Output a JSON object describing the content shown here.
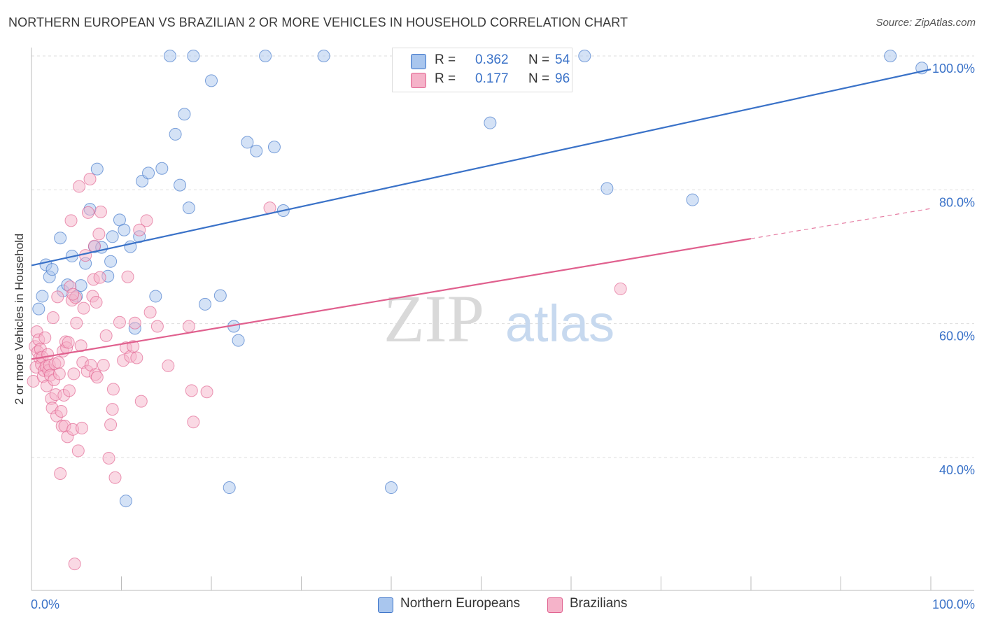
{
  "title": "NORTHERN EUROPEAN VS BRAZILIAN 2 OR MORE VEHICLES IN HOUSEHOLD CORRELATION CHART",
  "source": "Source: ZipAtlas.com",
  "colors": {
    "blue": "#3a72c8",
    "blue_fill": "#a9c6ee",
    "pink": "#e0608e",
    "pink_fill": "#f5b3c9",
    "grid": "#dddddd"
  },
  "legend": {
    "series": [
      {
        "r_label": "R =",
        "r_value": "0.362",
        "n_label": "N =",
        "n_value": "54"
      },
      {
        "r_label": "R =",
        "r_value": "0.177",
        "n_label": "N =",
        "n_value": "96"
      }
    ]
  },
  "bottom_legend": [
    "Northern Europeans",
    "Brazilians"
  ],
  "chart_data": {
    "type": "scatter",
    "title": "NORTHERN EUROPEAN VS BRAZILIAN 2 OR MORE VEHICLES IN HOUSEHOLD CORRELATION CHART",
    "xlabel": "",
    "ylabel": "2 or more Vehicles in Household",
    "xlim": [
      0,
      100
    ],
    "ylim": [
      22,
      102
    ],
    "x_tick_labels": [
      {
        "value": 0,
        "label": "0.0%"
      },
      {
        "value": 100,
        "label": "100.0%"
      }
    ],
    "y_tick_labels": [
      {
        "value": 40,
        "label": "40.0%"
      },
      {
        "value": 60,
        "label": "60.0%"
      },
      {
        "value": 80,
        "label": "80.0%"
      },
      {
        "value": 100,
        "label": "100.0%"
      }
    ],
    "watermark": {
      "zip": "ZIP",
      "atlas": "atlas"
    },
    "series": [
      {
        "name": "Northern Europeans",
        "color": "#3a72c8",
        "R": 0.362,
        "N": 54,
        "trend": {
          "x0": 0,
          "y0": 68.7,
          "x1": 100,
          "y1": 98.0,
          "solid_until": 100
        },
        "points": [
          [
            0.8,
            62.2
          ],
          [
            1.2,
            64.1
          ],
          [
            1.6,
            68.8
          ],
          [
            2.0,
            67.0
          ],
          [
            2.3,
            68.1
          ],
          [
            3.2,
            72.8
          ],
          [
            3.5,
            64.9
          ],
          [
            4.0,
            65.8
          ],
          [
            4.5,
            70.1
          ],
          [
            5.0,
            64.1
          ],
          [
            5.5,
            65.7
          ],
          [
            6.0,
            69.0
          ],
          [
            6.5,
            77.1
          ],
          [
            7.0,
            71.5
          ],
          [
            7.3,
            83.1
          ],
          [
            7.8,
            71.4
          ],
          [
            8.5,
            67.1
          ],
          [
            8.8,
            69.3
          ],
          [
            9.0,
            73.0
          ],
          [
            9.8,
            75.5
          ],
          [
            10.3,
            74.0
          ],
          [
            10.5,
            33.5
          ],
          [
            11.0,
            71.5
          ],
          [
            11.5,
            59.3
          ],
          [
            12.0,
            73.0
          ],
          [
            12.3,
            81.3
          ],
          [
            13.0,
            82.5
          ],
          [
            13.8,
            64.1
          ],
          [
            14.5,
            83.2
          ],
          [
            15.4,
            100.0
          ],
          [
            16.0,
            88.3
          ],
          [
            16.5,
            80.7
          ],
          [
            17.0,
            91.3
          ],
          [
            17.5,
            77.3
          ],
          [
            18.0,
            100.0
          ],
          [
            19.3,
            62.9
          ],
          [
            20.0,
            96.3
          ],
          [
            21.0,
            64.2
          ],
          [
            22.0,
            35.5
          ],
          [
            22.5,
            59.6
          ],
          [
            23.0,
            57.5
          ],
          [
            24.0,
            87.1
          ],
          [
            25.0,
            85.8
          ],
          [
            26.0,
            100.0
          ],
          [
            27.0,
            86.4
          ],
          [
            28.0,
            76.9
          ],
          [
            32.5,
            100.0
          ],
          [
            40.0,
            35.5
          ],
          [
            51.0,
            90.0
          ],
          [
            61.5,
            100.0
          ],
          [
            64.0,
            80.2
          ],
          [
            73.5,
            78.5
          ],
          [
            95.5,
            100.0
          ],
          [
            99.0,
            98.2
          ]
        ]
      },
      {
        "name": "Brazilians",
        "color": "#e0608e",
        "R": 0.177,
        "N": 96,
        "trend": {
          "x0": 0,
          "y0": 54.7,
          "x1": 100,
          "y1": 77.2,
          "solid_until": 80
        },
        "points": [
          [
            0.2,
            51.4
          ],
          [
            0.4,
            56.6
          ],
          [
            0.5,
            53.5
          ],
          [
            0.6,
            58.8
          ],
          [
            0.7,
            55.8
          ],
          [
            0.8,
            57.6
          ],
          [
            0.9,
            54.9
          ],
          [
            1.0,
            56.2
          ],
          [
            1.1,
            53.9
          ],
          [
            1.2,
            55.0
          ],
          [
            1.3,
            52.1
          ],
          [
            1.4,
            53.0
          ],
          [
            1.5,
            57.9
          ],
          [
            1.6,
            53.6
          ],
          [
            1.7,
            50.7
          ],
          [
            1.8,
            55.4
          ],
          [
            1.9,
            53.0
          ],
          [
            2.0,
            53.8
          ],
          [
            2.1,
            52.3
          ],
          [
            2.2,
            48.8
          ],
          [
            2.3,
            47.4
          ],
          [
            2.4,
            60.9
          ],
          [
            2.5,
            51.6
          ],
          [
            2.6,
            54.0
          ],
          [
            2.7,
            49.4
          ],
          [
            2.8,
            46.2
          ],
          [
            2.9,
            64.0
          ],
          [
            3.0,
            54.2
          ],
          [
            3.1,
            52.5
          ],
          [
            3.2,
            37.6
          ],
          [
            3.3,
            46.9
          ],
          [
            3.4,
            44.7
          ],
          [
            3.5,
            55.9
          ],
          [
            3.6,
            49.3
          ],
          [
            3.7,
            44.7
          ],
          [
            3.8,
            57.3
          ],
          [
            3.9,
            56.4
          ],
          [
            4.0,
            43.1
          ],
          [
            4.1,
            57.2
          ],
          [
            4.2,
            50.0
          ],
          [
            4.3,
            65.5
          ],
          [
            4.4,
            75.4
          ],
          [
            4.5,
            63.5
          ],
          [
            4.6,
            44.2
          ],
          [
            4.7,
            52.5
          ],
          [
            4.8,
            24.1
          ],
          [
            4.9,
            63.9
          ],
          [
            5.0,
            60.1
          ],
          [
            5.2,
            41.0
          ],
          [
            5.3,
            80.5
          ],
          [
            5.5,
            56.7
          ],
          [
            5.6,
            44.4
          ],
          [
            5.7,
            54.2
          ],
          [
            5.8,
            62.3
          ],
          [
            6.0,
            70.2
          ],
          [
            6.2,
            52.9
          ],
          [
            6.3,
            76.6
          ],
          [
            6.5,
            81.6
          ],
          [
            6.6,
            53.8
          ],
          [
            6.8,
            64.1
          ],
          [
            6.9,
            66.6
          ],
          [
            7.0,
            71.6
          ],
          [
            7.1,
            52.4
          ],
          [
            7.2,
            63.2
          ],
          [
            7.3,
            52.0
          ],
          [
            7.5,
            73.4
          ],
          [
            7.6,
            66.9
          ],
          [
            7.7,
            76.7
          ],
          [
            8.0,
            53.8
          ],
          [
            8.3,
            58.2
          ],
          [
            8.6,
            39.9
          ],
          [
            8.8,
            44.9
          ],
          [
            9.0,
            47.2
          ],
          [
            9.1,
            50.2
          ],
          [
            9.3,
            37.0
          ],
          [
            9.8,
            60.2
          ],
          [
            10.2,
            54.5
          ],
          [
            10.5,
            56.4
          ],
          [
            10.7,
            67.0
          ],
          [
            11.0,
            55.1
          ],
          [
            11.3,
            56.6
          ],
          [
            11.5,
            60.1
          ],
          [
            11.7,
            54.9
          ],
          [
            12.0,
            74.0
          ],
          [
            12.2,
            48.4
          ],
          [
            12.8,
            75.4
          ],
          [
            13.2,
            61.7
          ],
          [
            14.0,
            59.6
          ],
          [
            15.2,
            53.7
          ],
          [
            17.5,
            59.6
          ],
          [
            17.8,
            50.0
          ],
          [
            18.0,
            45.3
          ],
          [
            19.5,
            49.8
          ],
          [
            26.5,
            77.3
          ],
          [
            65.5,
            65.2
          ],
          [
            4.6,
            64.4
          ]
        ]
      }
    ]
  }
}
